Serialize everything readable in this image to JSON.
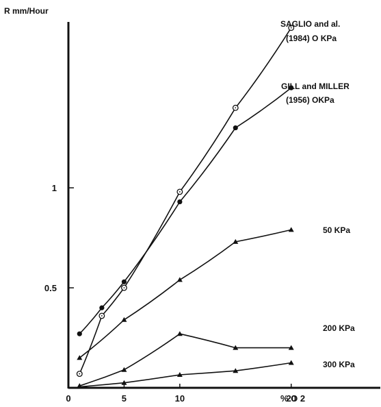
{
  "chart_data": {
    "type": "line",
    "ylabel": "R mm/Hour",
    "xlabel": "% O 2",
    "xlim": [
      0,
      28
    ],
    "ylim": [
      0,
      1.85
    ],
    "x_ticks": [
      {
        "value": 0,
        "label": "0"
      },
      {
        "value": 5,
        "label": "5"
      },
      {
        "value": 10,
        "label": "10"
      },
      {
        "value": 20,
        "label": "20"
      }
    ],
    "y_ticks": [
      {
        "value": 0.5,
        "label": "0.5"
      },
      {
        "value": 1,
        "label": "1"
      }
    ],
    "series": [
      {
        "key": "saglio",
        "marker": "open-circle",
        "label_lines": [
          "SAGLIO and al.",
          "(1984) O KPa"
        ],
        "points": [
          [
            1,
            0.07
          ],
          [
            3,
            0.36
          ],
          [
            5,
            0.5
          ],
          [
            10,
            0.98
          ],
          [
            15,
            1.4
          ],
          [
            20,
            1.8
          ]
        ]
      },
      {
        "key": "gill_miller",
        "marker": "filled-circle",
        "label_lines": [
          "GILL and MILLER",
          "(1956) OKPa"
        ],
        "points": [
          [
            1,
            0.27
          ],
          [
            3,
            0.4
          ],
          [
            5,
            0.53
          ],
          [
            10,
            0.93
          ],
          [
            15,
            1.3
          ],
          [
            20,
            1.5
          ]
        ]
      },
      {
        "key": "kpa50",
        "marker": "triangle",
        "label_lines": [
          "50 KPa"
        ],
        "points": [
          [
            1,
            0.15
          ],
          [
            5,
            0.34
          ],
          [
            10,
            0.54
          ],
          [
            15,
            0.73
          ],
          [
            20,
            0.79
          ]
        ]
      },
      {
        "key": "kpa200",
        "marker": "triangle",
        "label_lines": [
          "200 KPa"
        ],
        "points": [
          [
            1,
            0.01
          ],
          [
            5,
            0.09
          ],
          [
            10,
            0.27
          ],
          [
            15,
            0.2
          ],
          [
            20,
            0.2
          ]
        ]
      },
      {
        "key": "kpa300",
        "marker": "triangle",
        "label_lines": [
          "300 KPa"
        ],
        "points": [
          [
            1,
            0.005
          ],
          [
            5,
            0.025
          ],
          [
            10,
            0.065
          ],
          [
            15,
            0.085
          ],
          [
            20,
            0.125
          ]
        ]
      }
    ]
  }
}
